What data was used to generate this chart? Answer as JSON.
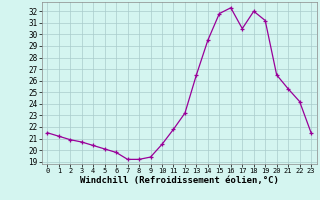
{
  "hours": [
    0,
    1,
    2,
    3,
    4,
    5,
    6,
    7,
    8,
    9,
    10,
    11,
    12,
    13,
    14,
    15,
    16,
    17,
    18,
    19,
    20,
    21,
    22,
    23
  ],
  "values": [
    21.5,
    21.2,
    20.9,
    20.7,
    20.4,
    20.1,
    19.8,
    19.2,
    19.2,
    19.4,
    20.5,
    21.8,
    23.2,
    26.5,
    29.5,
    31.8,
    32.3,
    30.5,
    32.0,
    31.2,
    26.5,
    25.3,
    24.2,
    21.5
  ],
  "xlabel": "Windchill (Refroidissement éolien,°C)",
  "ylim": [
    18.8,
    32.8
  ],
  "xlim": [
    -0.5,
    23.5
  ],
  "yticks": [
    19,
    20,
    21,
    22,
    23,
    24,
    25,
    26,
    27,
    28,
    29,
    30,
    31,
    32
  ],
  "xticks": [
    0,
    1,
    2,
    3,
    4,
    5,
    6,
    7,
    8,
    9,
    10,
    11,
    12,
    13,
    14,
    15,
    16,
    17,
    18,
    19,
    20,
    21,
    22,
    23
  ],
  "line_color": "#990099",
  "marker": "+",
  "bg_color": "#d4f5f0",
  "grid_color": "#aacccc",
  "label_fontsize": 6.5,
  "tick_fontsize": 5.5
}
